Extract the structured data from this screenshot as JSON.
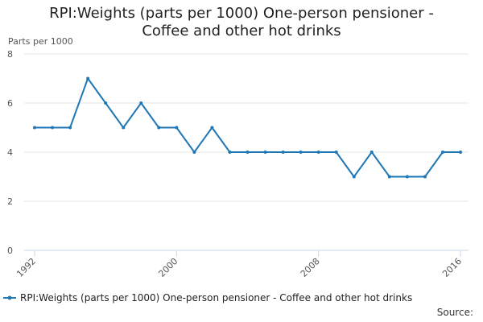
{
  "title_line1": "RPI:Weights (parts per 1000) One-person pensioner -",
  "title_line2": "Coffee and other hot drinks",
  "source_label": "Source:",
  "colors": {
    "series": "#1f78b4",
    "grid": "#e6e6e6",
    "axis": "#ccd6eb"
  },
  "chart_data": {
    "type": "line",
    "ylabel": "Parts per 1000",
    "xlabel": "",
    "ylim": [
      0,
      8
    ],
    "xlim": [
      1992,
      2016
    ],
    "yticks": [
      0,
      2,
      4,
      6,
      8
    ],
    "xticks": [
      "1992",
      "2000",
      "2008",
      "2016"
    ],
    "grid": true,
    "legend": "bottom",
    "series": [
      {
        "name": "RPI:Weights (parts per 1000) One-person pensioner - Coffee and other hot drinks",
        "x": [
          1992,
          1993,
          1994,
          1995,
          1996,
          1997,
          1998,
          1999,
          2000,
          2001,
          2002,
          2003,
          2004,
          2005,
          2006,
          2007,
          2008,
          2009,
          2010,
          2011,
          2012,
          2013,
          2014,
          2015,
          2016
        ],
        "values": [
          5,
          5,
          5,
          7,
          6,
          5,
          6,
          5,
          5,
          4,
          5,
          4,
          4,
          4,
          4,
          4,
          4,
          4,
          3,
          4,
          3,
          3,
          3,
          4,
          4
        ]
      }
    ]
  }
}
